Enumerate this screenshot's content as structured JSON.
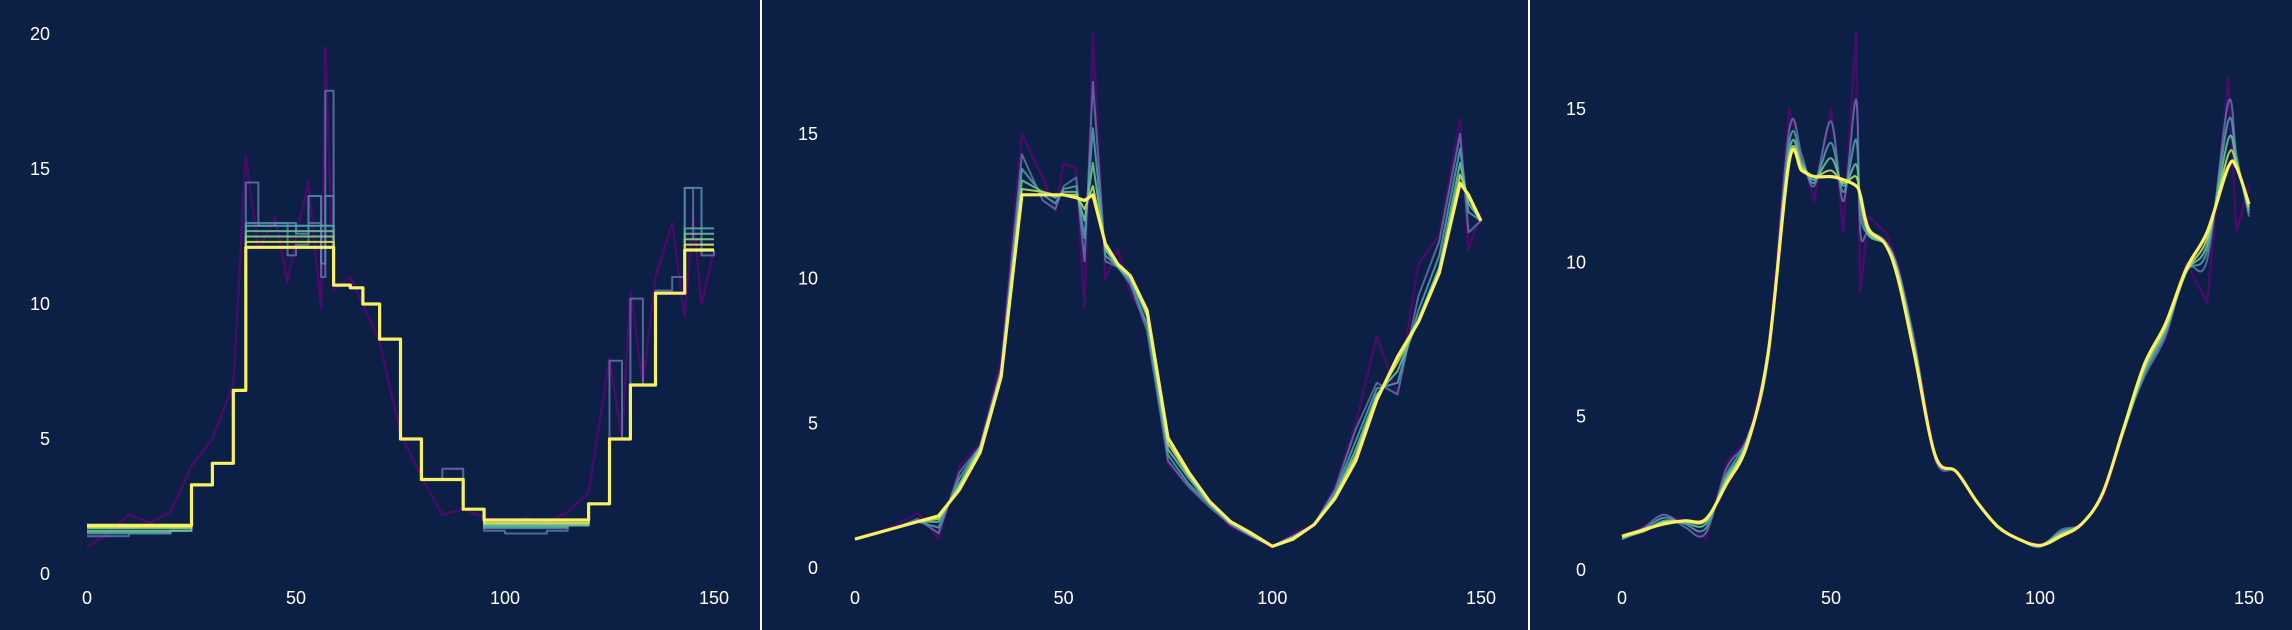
{
  "colors": {
    "background": "#0c1f45",
    "text": "#ffffff",
    "noisy_data": "#4b0c6b",
    "palette": [
      "#5d6fa2",
      "#5686a8",
      "#4f9aa8",
      "#50aea3",
      "#68c096",
      "#8dcf80",
      "#b7dc68",
      "#dde856",
      "#f8f163"
    ]
  },
  "chart_data": [
    {
      "type": "line",
      "variant": "stepwise-constant",
      "x_ticks": [
        "0",
        "50",
        "100",
        "150"
      ],
      "y_ticks": [
        "0",
        "5",
        "10",
        "15",
        "20"
      ],
      "xlim": [
        -8,
        155
      ],
      "ylim": [
        0,
        20
      ],
      "grid": false,
      "legend": "none",
      "raw_series": {
        "x": [
          0,
          5,
          10,
          15,
          20,
          25,
          30,
          35,
          38,
          41,
          45,
          48,
          50,
          53,
          56,
          57,
          59,
          63,
          66,
          70,
          75,
          80,
          85,
          90,
          95,
          100,
          105,
          110,
          115,
          120,
          125,
          128,
          130,
          133,
          136,
          140,
          143,
          145,
          147,
          150
        ],
        "y": [
          1.0,
          1.5,
          2.2,
          1.9,
          2.3,
          4.0,
          5.0,
          7.0,
          15.5,
          12.0,
          13.2,
          10.8,
          12.5,
          14.5,
          9.8,
          19.5,
          10.5,
          11.0,
          10.0,
          8.6,
          5.2,
          3.6,
          2.2,
          2.4,
          2.1,
          1.8,
          2.1,
          1.9,
          2.3,
          3.0,
          8.0,
          5.0,
          10.5,
          7.0,
          11.0,
          13.0,
          9.5,
          13.3,
          10.0,
          12.0
        ]
      },
      "smoothed_series": [
        {
          "values": [
            1.4,
            1.4,
            1.5,
            1.5,
            1.6,
            3.3,
            4.1,
            6.8,
            14.5,
            12.9,
            13.0,
            11.8,
            12.2,
            13.0,
            11.0,
            17.9,
            10.7,
            10.6,
            10.0,
            8.7,
            5.0,
            3.5,
            3.9,
            2.4,
            1.6,
            1.5,
            1.5,
            1.6,
            1.8,
            2.6,
            7.9,
            5.0,
            10.2,
            7.0,
            10.5,
            11.0,
            14.3,
            12.4,
            11.8,
            12.0
          ]
        },
        {
          "values": [
            1.5,
            1.5,
            1.5,
            1.5,
            1.6,
            3.3,
            4.1,
            6.8,
            13.0,
            13.0,
            13.0,
            13.0,
            12.6,
            14.0,
            11.5,
            14.0,
            10.7,
            10.6,
            10.0,
            8.7,
            5.0,
            3.5,
            3.5,
            2.4,
            1.7,
            1.7,
            1.7,
            1.7,
            1.8,
            2.6,
            5.0,
            5.0,
            7.0,
            7.0,
            10.4,
            10.4,
            14.3,
            14.3,
            12.2,
            12.2
          ]
        },
        {
          "values": [
            1.55,
            1.55,
            1.55,
            1.55,
            1.6,
            3.3,
            4.1,
            6.8,
            12.9,
            12.9,
            12.9,
            12.9,
            12.9,
            12.9,
            12.9,
            12.9,
            10.7,
            10.6,
            10.0,
            8.7,
            5.0,
            3.5,
            3.5,
            2.4,
            1.75,
            1.75,
            1.75,
            1.75,
            1.8,
            2.6,
            5.0,
            5.0,
            7.0,
            7.0,
            10.4,
            10.4,
            12.8,
            12.8,
            12.8,
            12.8
          ]
        },
        {
          "values": [
            1.6,
            1.6,
            1.6,
            1.6,
            1.6,
            3.3,
            4.1,
            6.8,
            12.7,
            12.7,
            12.7,
            12.7,
            12.7,
            12.7,
            12.7,
            12.7,
            10.7,
            10.6,
            10.0,
            8.7,
            5.0,
            3.5,
            3.5,
            2.4,
            1.8,
            1.8,
            1.8,
            1.8,
            1.8,
            2.6,
            5.0,
            5.0,
            7.0,
            7.0,
            10.4,
            10.4,
            12.6,
            12.6,
            12.6,
            12.6
          ]
        },
        {
          "values": [
            1.7,
            1.7,
            1.7,
            1.7,
            1.7,
            3.3,
            4.1,
            6.8,
            12.5,
            12.5,
            12.5,
            12.5,
            12.5,
            12.5,
            12.5,
            12.5,
            10.7,
            10.6,
            10.0,
            8.7,
            5.0,
            3.5,
            3.5,
            2.4,
            1.85,
            1.85,
            1.85,
            1.85,
            1.85,
            2.6,
            5.0,
            5.0,
            7.0,
            7.0,
            10.4,
            10.4,
            12.4,
            12.4,
            12.4,
            12.4
          ]
        },
        {
          "values": [
            1.75,
            1.75,
            1.75,
            1.75,
            1.75,
            3.3,
            4.1,
            6.8,
            12.3,
            12.3,
            12.3,
            12.3,
            12.3,
            12.3,
            12.3,
            12.3,
            10.7,
            10.6,
            10.0,
            8.7,
            5.0,
            3.5,
            3.5,
            2.4,
            1.9,
            1.9,
            1.9,
            1.9,
            1.9,
            2.6,
            5.0,
            5.0,
            7.0,
            7.0,
            10.4,
            10.4,
            12.2,
            12.2,
            12.2,
            12.2
          ]
        },
        {
          "values": [
            1.8,
            1.8,
            1.8,
            1.8,
            1.8,
            3.3,
            4.1,
            6.8,
            12.1,
            12.1,
            12.1,
            12.1,
            12.1,
            12.1,
            12.1,
            12.1,
            10.7,
            10.6,
            10.0,
            8.7,
            5.0,
            3.5,
            3.5,
            2.4,
            2.0,
            2.0,
            2.0,
            2.0,
            2.0,
            2.6,
            5.0,
            5.0,
            7.0,
            7.0,
            10.4,
            10.4,
            12.0,
            12.0,
            12.0,
            12.0
          ]
        }
      ]
    },
    {
      "type": "line",
      "variant": "piecewise-linear",
      "x_ticks": [
        "0",
        "50",
        "100",
        "150"
      ],
      "y_ticks": [
        "0",
        "5",
        "10",
        "15"
      ],
      "xlim": [
        -8,
        155
      ],
      "ylim": [
        -0.5,
        18.5
      ],
      "grid": false,
      "legend": "none",
      "raw_series": {
        "x": [
          0,
          5,
          10,
          15,
          20,
          25,
          30,
          35,
          40,
          45,
          48,
          50,
          53,
          55,
          57,
          60,
          63,
          66,
          70,
          75,
          80,
          85,
          90,
          95,
          100,
          105,
          110,
          115,
          120,
          125,
          130,
          135,
          140,
          145,
          147,
          150
        ],
        "y": [
          1.0,
          1.2,
          1.5,
          1.9,
          1.0,
          3.5,
          4.3,
          7.2,
          15.0,
          13.5,
          12.3,
          14.0,
          13.8,
          9.0,
          18.5,
          10.0,
          11.0,
          9.5,
          8.5,
          3.6,
          2.8,
          2.2,
          1.4,
          1.1,
          0.7,
          1.2,
          1.5,
          2.8,
          5.0,
          8.0,
          6.0,
          10.5,
          11.5,
          15.5,
          11.0,
          12.3
        ]
      },
      "smoothed_series": [
        {
          "values": [
            1.0,
            1.2,
            1.4,
            1.7,
            1.2,
            3.3,
            4.2,
            6.9,
            14.3,
            12.7,
            12.4,
            13.2,
            13.5,
            10.6,
            16.8,
            10.6,
            10.4,
            9.8,
            8.2,
            3.7,
            2.8,
            2.1,
            1.5,
            1.1,
            0.75,
            1.1,
            1.5,
            2.7,
            4.8,
            6.4,
            6.0,
            9.4,
            11.3,
            15.0,
            11.6,
            12.0
          ]
        },
        {
          "values": [
            1.0,
            1.2,
            1.4,
            1.6,
            1.4,
            3.1,
            4.2,
            6.8,
            13.8,
            12.9,
            12.6,
            13.1,
            13.2,
            11.4,
            15.2,
            10.8,
            10.4,
            9.9,
            8.4,
            3.9,
            2.9,
            2.2,
            1.5,
            1.1,
            0.75,
            1.1,
            1.5,
            2.6,
            4.4,
            6.2,
            6.4,
            8.9,
            10.8,
            14.5,
            12.3,
            12.0
          ]
        },
        {
          "values": [
            1.0,
            1.2,
            1.4,
            1.6,
            1.6,
            2.9,
            4.2,
            6.7,
            13.4,
            13.0,
            12.8,
            13.0,
            13.0,
            12.0,
            14.0,
            11.0,
            10.4,
            10.0,
            8.7,
            4.1,
            3.1,
            2.2,
            1.6,
            1.15,
            0.75,
            1.05,
            1.5,
            2.5,
            4.1,
            6.0,
            6.8,
            8.6,
            10.4,
            14.0,
            12.6,
            12.0
          ]
        },
        {
          "values": [
            1.0,
            1.2,
            1.4,
            1.6,
            1.7,
            2.8,
            4.1,
            6.7,
            13.1,
            13.0,
            12.9,
            12.9,
            12.9,
            12.4,
            13.2,
            11.1,
            10.5,
            10.1,
            8.8,
            4.3,
            3.2,
            2.3,
            1.6,
            1.15,
            0.75,
            1.05,
            1.5,
            2.45,
            3.9,
            5.9,
            7.1,
            8.5,
            10.2,
            13.6,
            12.8,
            12.0
          ]
        },
        {
          "values": [
            1.0,
            1.2,
            1.4,
            1.6,
            1.8,
            2.7,
            4.0,
            6.6,
            12.9,
            12.9,
            12.9,
            12.9,
            12.8,
            12.7,
            12.9,
            11.2,
            10.5,
            10.1,
            8.9,
            4.5,
            3.3,
            2.3,
            1.6,
            1.2,
            0.75,
            1.0,
            1.5,
            2.4,
            3.7,
            5.8,
            7.3,
            8.5,
            10.2,
            13.3,
            12.9,
            12.0
          ]
        }
      ]
    },
    {
      "type": "line",
      "variant": "smooth",
      "x_ticks": [
        "0",
        "50",
        "100",
        "150"
      ],
      "y_ticks": [
        "0",
        "5",
        "10",
        "15"
      ],
      "xlim": [
        -8,
        155
      ],
      "ylim": [
        -0.5,
        17.8
      ],
      "grid": false,
      "legend": "none",
      "raw_series": {
        "x": [
          0,
          5,
          10,
          15,
          20,
          25,
          30,
          35,
          40,
          43,
          46,
          50,
          53,
          56,
          57,
          59,
          63,
          66,
          70,
          75,
          80,
          85,
          90,
          95,
          100,
          105,
          110,
          115,
          120,
          125,
          130,
          135,
          140,
          145,
          147,
          150
        ],
        "y": [
          1.0,
          1.4,
          1.8,
          1.6,
          1.0,
          3.5,
          4.3,
          6.8,
          15.0,
          13.5,
          12.0,
          15.0,
          11.0,
          17.5,
          9.0,
          11.5,
          11.0,
          10.0,
          7.5,
          3.5,
          3.2,
          2.2,
          1.4,
          1.0,
          0.8,
          1.2,
          1.5,
          2.3,
          4.5,
          6.5,
          7.5,
          10.0,
          8.7,
          16.0,
          11.0,
          12.5
        ]
      },
      "smoothed_series": [
        {
          "values": [
            1.0,
            1.35,
            1.8,
            1.4,
            1.2,
            3.3,
            4.3,
            6.9,
            14.3,
            13.5,
            12.5,
            14.6,
            12.0,
            15.3,
            11.0,
            11.0,
            10.7,
            9.8,
            7.4,
            3.6,
            3.2,
            2.2,
            1.4,
            1.0,
            0.75,
            1.3,
            1.5,
            2.5,
            4.6,
            6.3,
            7.6,
            9.8,
            10.1,
            15.2,
            13.5,
            11.5
          ]
        },
        {
          "values": [
            1.0,
            1.3,
            1.7,
            1.5,
            1.35,
            3.1,
            4.3,
            6.9,
            13.9,
            13.3,
            12.6,
            13.9,
            12.3,
            14.0,
            11.6,
            10.9,
            10.6,
            9.8,
            7.3,
            3.7,
            3.2,
            2.2,
            1.4,
            1.0,
            0.8,
            1.25,
            1.5,
            2.5,
            4.5,
            6.4,
            7.7,
            9.7,
            10.4,
            14.6,
            13.4,
            11.6
          ]
        },
        {
          "values": [
            1.05,
            1.25,
            1.6,
            1.55,
            1.5,
            3.0,
            4.2,
            7.0,
            13.6,
            13.2,
            12.7,
            13.4,
            12.5,
            13.2,
            12.0,
            10.9,
            10.6,
            9.7,
            7.2,
            3.7,
            3.2,
            2.2,
            1.4,
            1.0,
            0.8,
            1.2,
            1.5,
            2.5,
            4.5,
            6.5,
            7.8,
            9.7,
            10.6,
            14.0,
            13.3,
            11.7
          ]
        },
        {
          "values": [
            1.1,
            1.25,
            1.55,
            1.6,
            1.6,
            2.9,
            4.2,
            7.1,
            13.4,
            13.1,
            12.8,
            13.0,
            12.6,
            12.8,
            12.1,
            11.0,
            10.6,
            9.6,
            7.1,
            3.7,
            3.2,
            2.2,
            1.4,
            1.0,
            0.8,
            1.15,
            1.5,
            2.5,
            4.6,
            6.6,
            7.9,
            9.7,
            10.8,
            13.5,
            13.2,
            11.8
          ]
        },
        {
          "values": [
            1.1,
            1.3,
            1.5,
            1.6,
            1.65,
            2.8,
            4.1,
            7.1,
            13.3,
            13.0,
            12.8,
            12.8,
            12.7,
            12.5,
            12.2,
            11.1,
            10.6,
            9.5,
            7.0,
            3.7,
            3.2,
            2.2,
            1.4,
            1.0,
            0.8,
            1.1,
            1.5,
            2.5,
            4.6,
            6.7,
            8.0,
            9.8,
            11.0,
            13.1,
            13.1,
            11.9
          ]
        }
      ]
    }
  ]
}
